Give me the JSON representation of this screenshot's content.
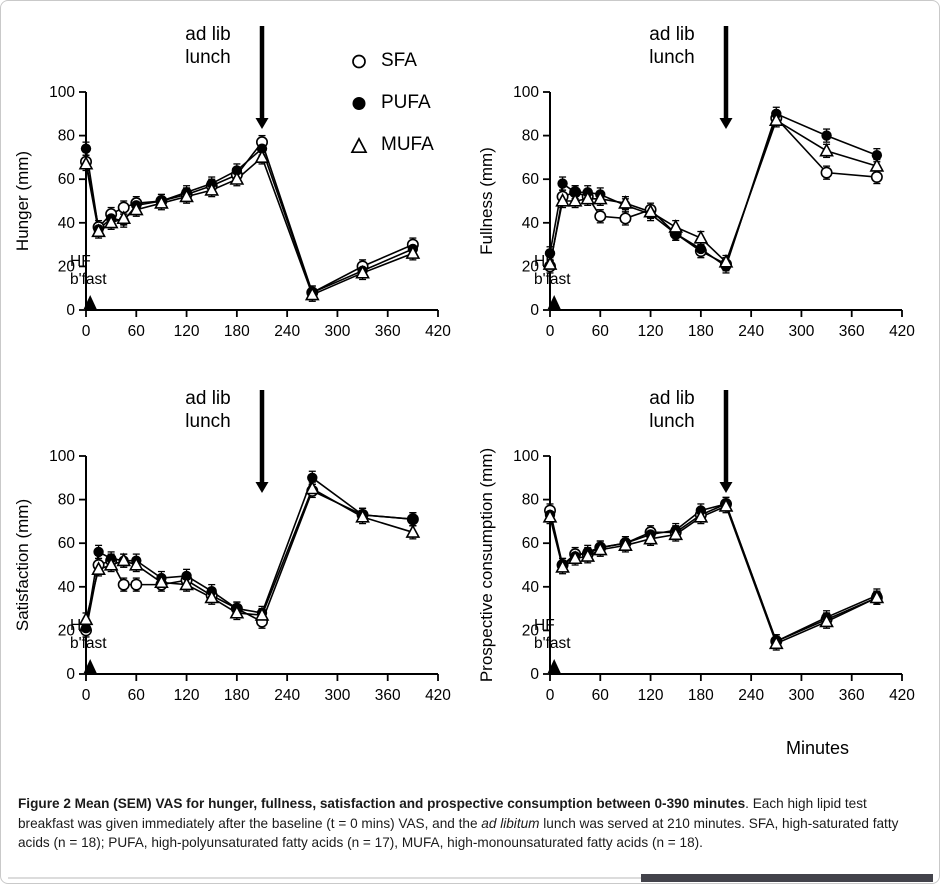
{
  "figure": {
    "legend": [
      {
        "label": "SFA",
        "marker": "open-circle"
      },
      {
        "label": "PUFA",
        "marker": "filled-circle"
      },
      {
        "label": "MUFA",
        "marker": "open-triangle"
      }
    ],
    "x_axis_label": "Minutes",
    "annotations": {
      "lunch_line1": "ad lib",
      "lunch_line2": "lunch",
      "bfast_line1": "HF",
      "bfast_line2": "b'fast"
    },
    "colors": {
      "ink": "#000000",
      "background": "#ffffff"
    }
  },
  "chart_data": [
    {
      "type": "line",
      "ylabel": "Hunger (mm)",
      "x": [
        0,
        15,
        30,
        45,
        60,
        90,
        120,
        150,
        180,
        210,
        270,
        330,
        390
      ],
      "xlim": [
        0,
        420
      ],
      "ylim": [
        0,
        100
      ],
      "xticks": [
        0,
        60,
        120,
        180,
        240,
        300,
        360,
        420
      ],
      "yticks": [
        0,
        20,
        40,
        60,
        80,
        100
      ],
      "lunch_x": 210,
      "lunch_arrow_tip": 83,
      "series": [
        {
          "name": "SFA",
          "marker": "open-circle",
          "sem": 3,
          "values": [
            68,
            38,
            44,
            47,
            49,
            50,
            53,
            57,
            62,
            77,
            8,
            20,
            30
          ]
        },
        {
          "name": "PUFA",
          "marker": "filled-circle",
          "sem": 3,
          "values": [
            74,
            37,
            42,
            41,
            48,
            50,
            54,
            58,
            64,
            74,
            8,
            18,
            28
          ]
        },
        {
          "name": "MUFA",
          "marker": "open-triangle",
          "sem": 3,
          "values": [
            67,
            36,
            40,
            42,
            46,
            49,
            52,
            55,
            60,
            70,
            7,
            17,
            26
          ]
        }
      ]
    },
    {
      "type": "line",
      "ylabel": "Fullness (mm)",
      "x": [
        0,
        15,
        30,
        45,
        60,
        90,
        120,
        150,
        180,
        210,
        270,
        330,
        390
      ],
      "xlim": [
        0,
        420
      ],
      "ylim": [
        0,
        100
      ],
      "xticks": [
        0,
        60,
        120,
        180,
        240,
        300,
        360,
        420
      ],
      "yticks": [
        0,
        20,
        40,
        60,
        80,
        100
      ],
      "lunch_x": 210,
      "lunch_arrow_tip": 83,
      "series": [
        {
          "name": "SFA",
          "marker": "open-circle",
          "sem": 3,
          "values": [
            20,
            52,
            54,
            52,
            43,
            42,
            46,
            35,
            27,
            21,
            88,
            63,
            61
          ]
        },
        {
          "name": "PUFA",
          "marker": "filled-circle",
          "sem": 3,
          "values": [
            26,
            58,
            54,
            54,
            53,
            48,
            44,
            35,
            28,
            20,
            90,
            80,
            71
          ]
        },
        {
          "name": "MUFA",
          "marker": "open-triangle",
          "sem": 3,
          "values": [
            21,
            50,
            50,
            51,
            51,
            49,
            45,
            38,
            33,
            22,
            87,
            73,
            66
          ]
        }
      ]
    },
    {
      "type": "line",
      "ylabel": "Satisfaction (mm)",
      "x": [
        0,
        15,
        30,
        45,
        60,
        90,
        120,
        150,
        180,
        210,
        270,
        330,
        390
      ],
      "xlim": [
        0,
        420
      ],
      "ylim": [
        0,
        100
      ],
      "xticks": [
        0,
        60,
        120,
        180,
        240,
        300,
        360,
        420
      ],
      "yticks": [
        0,
        20,
        40,
        60,
        80,
        100
      ],
      "lunch_x": 210,
      "lunch_arrow_tip": 83,
      "series": [
        {
          "name": "SFA",
          "marker": "open-circle",
          "sem": 3,
          "values": [
            20,
            50,
            52,
            41,
            41,
            41,
            43,
            36,
            30,
            24,
            84,
            73,
            71
          ]
        },
        {
          "name": "PUFA",
          "marker": "filled-circle",
          "sem": 3,
          "values": [
            21,
            56,
            53,
            52,
            52,
            44,
            45,
            38,
            30,
            28,
            90,
            73,
            71
          ]
        },
        {
          "name": "MUFA",
          "marker": "open-triangle",
          "sem": 3,
          "values": [
            25,
            48,
            50,
            52,
            50,
            42,
            41,
            35,
            28,
            27,
            85,
            72,
            65
          ]
        }
      ]
    },
    {
      "type": "line",
      "ylabel": "Prospective consumption (mm)",
      "x": [
        0,
        15,
        30,
        45,
        60,
        90,
        120,
        150,
        180,
        210,
        270,
        330,
        390
      ],
      "xlim": [
        0,
        420
      ],
      "ylim": [
        0,
        100
      ],
      "xticks": [
        0,
        60,
        120,
        180,
        240,
        300,
        360,
        420
      ],
      "yticks": [
        0,
        20,
        40,
        60,
        80,
        100
      ],
      "lunch_x": 210,
      "lunch_arrow_tip": 83,
      "series": [
        {
          "name": "SFA",
          "marker": "open-circle",
          "sem": 3,
          "values": [
            75,
            50,
            55,
            55,
            58,
            60,
            65,
            65,
            73,
            78,
            15,
            25,
            35
          ]
        },
        {
          "name": "PUFA",
          "marker": "filled-circle",
          "sem": 3,
          "values": [
            73,
            50,
            54,
            56,
            58,
            60,
            64,
            66,
            75,
            78,
            15,
            26,
            36
          ]
        },
        {
          "name": "MUFA",
          "marker": "open-triangle",
          "sem": 3,
          "values": [
            72,
            49,
            53,
            54,
            57,
            59,
            62,
            64,
            72,
            77,
            14,
            24,
            35
          ]
        }
      ]
    }
  ],
  "caption": {
    "bold": "Figure 2 Mean (SEM) VAS for hunger, fullness, satisfaction and prospective consumption between 0-390 minutes",
    "text1": ". Each high lipid test breakfast was given immediately after the baseline (t = 0 mins) VAS, and the ",
    "italic": "ad libitum",
    "text2": " lunch was served at 210 minutes. SFA, high-saturated fatty acids (n = 18); PUFA, high-polyunsaturated fatty acids (n = 17), MUFA, high-monounsaturated fatty acids (n = 18)."
  }
}
